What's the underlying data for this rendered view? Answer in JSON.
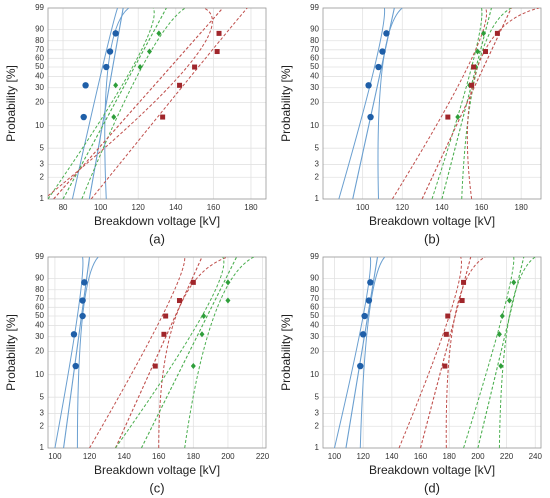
{
  "chart_data": [
    {
      "type": "weibull",
      "caption": "(a)",
      "x_label": "Breakdown voltage [kV]",
      "y_label": "Probability [%]",
      "xlim": [
        72,
        188
      ],
      "xticks": [
        80,
        100,
        120,
        140,
        160,
        180
      ],
      "ylim": [
        1,
        99
      ],
      "yticks": [
        1,
        2,
        3,
        5,
        10,
        20,
        30,
        40,
        50,
        60,
        70,
        80,
        90,
        99
      ],
      "grid": true,
      "bound_p": [
        1,
        50,
        99
      ],
      "series": [
        {
          "color": "#1f5fa8",
          "line_color": "#6a9fd0",
          "marker": "circle",
          "dashed": false,
          "values": [
            13,
            32,
            50,
            68,
            87
          ],
          "x": [
            91,
            92,
            103,
            105,
            108
          ],
          "fit_x": [
            94,
            112
          ],
          "bound_lower_x": [
            85,
            101,
            109
          ],
          "bound_upper_x": [
            103,
            104,
            115
          ]
        },
        {
          "color": "#2e9e3a",
          "line_color": "#4caf50",
          "marker": "diamond",
          "dashed": true,
          "values": [
            13,
            32,
            50,
            68,
            87
          ],
          "x": [
            107,
            108,
            121,
            126,
            131
          ],
          "fit_x": [
            80,
            135
          ],
          "bound_lower_x": [
            72,
            117,
            128
          ],
          "bound_upper_x": [
            90,
            122,
            145
          ]
        },
        {
          "color": "#a0262b",
          "line_color": "#c0504d",
          "marker": "square",
          "dashed": true,
          "values": [
            13,
            32,
            50,
            68,
            87
          ],
          "x": [
            133,
            142,
            150,
            162,
            163
          ],
          "fit_x": [
            75,
            165
          ],
          "bound_lower_x": [
            70,
            146,
            155
          ],
          "bound_upper_x": [
            95,
            152,
            178
          ]
        }
      ]
    },
    {
      "type": "weibull",
      "caption": "(b)",
      "x_label": "Breakdown voltage [kV]",
      "y_label": "Probability [%]",
      "xlim": [
        80,
        190
      ],
      "xticks": [
        100,
        120,
        140,
        160,
        180
      ],
      "ylim": [
        1,
        99
      ],
      "yticks": [
        1,
        2,
        3,
        5,
        10,
        20,
        30,
        40,
        50,
        60,
        70,
        80,
        90,
        99
      ],
      "grid": true,
      "bound_p": [
        1,
        50,
        99
      ],
      "series": [
        {
          "color": "#1f5fa8",
          "line_color": "#6a9fd0",
          "marker": "circle",
          "dashed": false,
          "values": [
            13,
            32,
            50,
            68,
            87
          ],
          "x": [
            104,
            103,
            108,
            110,
            112
          ],
          "fit_x": [
            95,
            116
          ],
          "bound_lower_x": [
            88,
            106,
            111
          ],
          "bound_upper_x": [
            108,
            110,
            120
          ]
        },
        {
          "color": "#2e9e3a",
          "line_color": "#4caf50",
          "marker": "diamond",
          "dashed": true,
          "values": [
            13,
            32,
            50,
            68,
            87
          ],
          "x": [
            148,
            154,
            157,
            158,
            161
          ],
          "fit_x": [
            140,
            165
          ],
          "bound_lower_x": [
            135,
            155,
            160
          ],
          "bound_upper_x": [
            150,
            158,
            175
          ]
        },
        {
          "color": "#a0262b",
          "line_color": "#c0504d",
          "marker": "square",
          "dashed": true,
          "values": [
            13,
            32,
            50,
            68,
            87
          ],
          "x": [
            143,
            155,
            156,
            162,
            168
          ],
          "fit_x": [
            130,
            175
          ],
          "bound_lower_x": [
            115,
            153,
            162
          ],
          "bound_upper_x": [
            155,
            158,
            189
          ]
        }
      ]
    },
    {
      "type": "weibull",
      "caption": "(c)",
      "x_label": "Breakdown voltage [kV]",
      "y_label": "Probability [%]",
      "xlim": [
        96,
        222
      ],
      "xticks": [
        100,
        120,
        140,
        160,
        180,
        200,
        220
      ],
      "ylim": [
        1,
        99
      ],
      "yticks": [
        1,
        2,
        3,
        5,
        10,
        20,
        30,
        40,
        50,
        60,
        70,
        80,
        90,
        99
      ],
      "grid": true,
      "bound_p": [
        1,
        50,
        99
      ],
      "series": [
        {
          "color": "#1f5fa8",
          "line_color": "#6a9fd0",
          "marker": "circle",
          "dashed": false,
          "values": [
            13,
            32,
            50,
            68,
            87
          ],
          "x": [
            112,
            111,
            116,
            116,
            117
          ],
          "fit_x": [
            105,
            120
          ],
          "bound_lower_x": [
            100,
            113,
            116
          ],
          "bound_upper_x": [
            113,
            116,
            125
          ]
        },
        {
          "color": "#a0262b",
          "line_color": "#c0504d",
          "marker": "square",
          "dashed": true,
          "values": [
            13,
            32,
            50,
            68,
            87
          ],
          "x": [
            158,
            163,
            164,
            172,
            180
          ],
          "fit_x": [
            135,
            185
          ],
          "bound_lower_x": [
            120,
            162,
            175
          ],
          "bound_upper_x": [
            160,
            170,
            200
          ]
        },
        {
          "color": "#2e9e3a",
          "line_color": "#4caf50",
          "marker": "diamond",
          "dashed": true,
          "values": [
            13,
            32,
            50,
            68,
            87
          ],
          "x": [
            180,
            185,
            186,
            200,
            200
          ],
          "fit_x": [
            150,
            205
          ],
          "bound_lower_x": [
            135,
            185,
            197
          ],
          "bound_upper_x": [
            175,
            192,
            215
          ]
        }
      ]
    },
    {
      "type": "weibull",
      "caption": "(d)",
      "x_label": "Breakdown voltage [kV]",
      "y_label": "Probability [%]",
      "xlim": [
        92,
        244
      ],
      "xticks": [
        100,
        120,
        140,
        160,
        180,
        200,
        220,
        240
      ],
      "ylim": [
        1,
        99
      ],
      "yticks": [
        1,
        2,
        3,
        5,
        10,
        20,
        30,
        40,
        50,
        60,
        70,
        80,
        90,
        99
      ],
      "grid": true,
      "bound_p": [
        1,
        50,
        99
      ],
      "series": [
        {
          "color": "#1f5fa8",
          "line_color": "#6a9fd0",
          "marker": "circle",
          "dashed": false,
          "values": [
            13,
            32,
            50,
            68,
            87
          ],
          "x": [
            118,
            120,
            121,
            124,
            125
          ],
          "fit_x": [
            108,
            130
          ],
          "bound_lower_x": [
            100,
            120,
            125
          ],
          "bound_upper_x": [
            118,
            124,
            135
          ]
        },
        {
          "color": "#a0262b",
          "line_color": "#c0504d",
          "marker": "square",
          "dashed": true,
          "values": [
            13,
            32,
            50,
            68,
            87
          ],
          "x": [
            177,
            178,
            179,
            189,
            190
          ],
          "fit_x": [
            160,
            195
          ],
          "bound_lower_x": [
            145,
            180,
            188
          ],
          "bound_upper_x": [
            178,
            184,
            205
          ]
        },
        {
          "color": "#2e9e3a",
          "line_color": "#4caf50",
          "marker": "diamond",
          "dashed": true,
          "values": [
            13,
            32,
            50,
            68,
            87
          ],
          "x": [
            216,
            215,
            217,
            222,
            225
          ],
          "fit_x": [
            200,
            232
          ],
          "bound_lower_x": [
            190,
            217,
            225
          ],
          "bound_upper_x": [
            215,
            222,
            240
          ]
        }
      ]
    }
  ]
}
